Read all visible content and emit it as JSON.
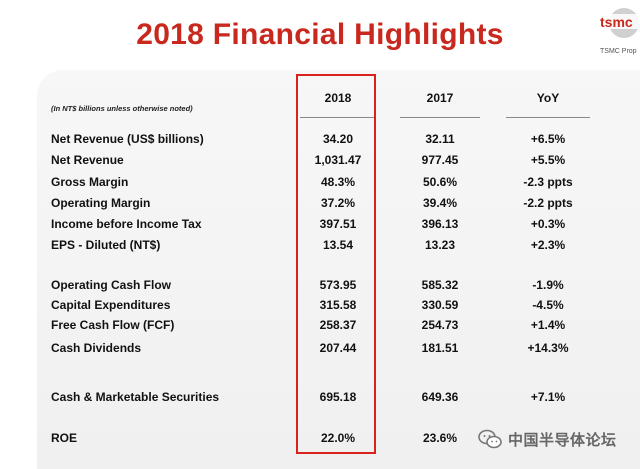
{
  "title": "2018 Financial Highlights",
  "logo": {
    "wordmark": "tsmc",
    "caption": "TSMC Prop"
  },
  "table": {
    "note": "(In NT$ billions unless otherwise noted)",
    "headers": [
      "2018",
      "2017",
      "YoY"
    ],
    "rows": [
      {
        "label": "Net Revenue (US$ billions)",
        "v2018": "34.20",
        "v2017": "32.11",
        "yoy": "+6.5%"
      },
      {
        "label": "Net Revenue",
        "v2018": "1,031.47",
        "v2017": "977.45",
        "yoy": "+5.5%"
      },
      {
        "label": "Gross Margin",
        "v2018": "48.3%",
        "v2017": "50.6%",
        "yoy": "-2.3 ppts"
      },
      {
        "label": "Operating Margin",
        "v2018": "37.2%",
        "v2017": "39.4%",
        "yoy": "-2.2 ppts"
      },
      {
        "label": "Income before Income Tax",
        "v2018": "397.51",
        "v2017": "396.13",
        "yoy": "+0.3%"
      },
      {
        "label": "EPS - Diluted (NT$)",
        "v2018": "13.54",
        "v2017": "13.23",
        "yoy": "+2.3%"
      },
      {
        "label": "Operating Cash Flow",
        "v2018": "573.95",
        "v2017": "585.32",
        "yoy": "-1.9%"
      },
      {
        "label": "Capital Expenditures",
        "v2018": "315.58",
        "v2017": "330.59",
        "yoy": "-4.5%"
      },
      {
        "label": "Free Cash Flow (FCF)",
        "v2018": "258.37",
        "v2017": "254.73",
        "yoy": "+1.4%"
      },
      {
        "label": "Cash Dividends",
        "v2018": "207.44",
        "v2017": "181.51",
        "yoy": "+14.3%"
      },
      {
        "label": "Cash & Marketable Securities",
        "v2018": "695.18",
        "v2017": "649.36",
        "yoy": "+7.1%"
      },
      {
        "label": "ROE",
        "v2018": "22.0%",
        "v2017": "23.6%",
        "yoy": ""
      }
    ]
  },
  "watermark": {
    "text": "中国半导体论坛",
    "icon": "wechat-icon"
  },
  "colors": {
    "title": "#c8281e",
    "highlight_box": "#d8231c",
    "panel": "#f2f2f2"
  }
}
